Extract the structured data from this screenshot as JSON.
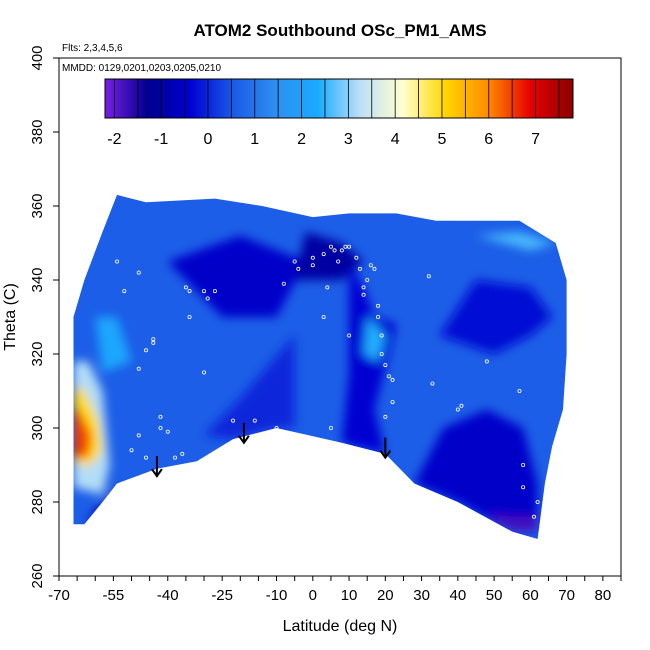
{
  "chart_data": {
    "type": "heatmap",
    "title": "ATOM2 Southbound OSc_PM1_AMS",
    "subtitle_flights": "Flts: 2,3,4,5,6",
    "subtitle_dates": "MMDD: 0129,0201,0203,0205,0210",
    "xlabel": "Latitude (deg N)",
    "ylabel": "Theta (C)",
    "xlim": [
      -70,
      85
    ],
    "ylim": [
      260,
      400
    ],
    "x_ticks": [
      -70,
      -55,
      -40,
      -25,
      -10,
      0,
      10,
      20,
      30,
      40,
      50,
      60,
      70,
      80
    ],
    "x_minor_ticks": [
      -70,
      -65,
      -60,
      -55,
      -50,
      -45,
      -40,
      -35,
      -30,
      -25,
      -20,
      -15,
      -10,
      -5,
      0,
      5,
      10,
      15,
      20,
      25,
      30,
      35,
      40,
      45,
      50,
      55,
      60,
      65,
      70,
      75,
      80,
      85
    ],
    "y_ticks": [
      260,
      280,
      300,
      320,
      340,
      360,
      380,
      400
    ],
    "colorbar": {
      "range": [
        -2.2,
        7.8
      ],
      "tick_values": [
        -2,
        -1,
        0,
        1,
        2,
        3,
        4,
        5,
        6,
        7
      ],
      "colors": [
        "#7a1ee6",
        "#00008c",
        "#0000d2",
        "#1a5ae6",
        "#2e8ef0",
        "#1aaaff",
        "#bde0f7",
        "#ffffd0",
        "#ffd700",
        "#ff8c00",
        "#e60000",
        "#8b0000"
      ]
    },
    "arrows": [
      {
        "lat": -43,
        "theta": 287
      },
      {
        "lat": -19,
        "theta": 296
      },
      {
        "lat": 20,
        "theta": 292
      }
    ],
    "field_outline": [
      [
        -66,
        274
      ],
      [
        -66,
        290
      ],
      [
        -66,
        330
      ],
      [
        -63,
        340
      ],
      [
        -58,
        353
      ],
      [
        -54,
        363
      ],
      [
        -46,
        361
      ],
      [
        -27,
        362
      ],
      [
        -14,
        360
      ],
      [
        0,
        357
      ],
      [
        10,
        358
      ],
      [
        23,
        358
      ],
      [
        34,
        356
      ],
      [
        48,
        356
      ],
      [
        57,
        356
      ],
      [
        67,
        350
      ],
      [
        70,
        340
      ],
      [
        70,
        320
      ],
      [
        69,
        305
      ],
      [
        66,
        295
      ],
      [
        64,
        285
      ],
      [
        62,
        270
      ],
      [
        55,
        272
      ],
      [
        40,
        280
      ],
      [
        28,
        285
      ],
      [
        20,
        293
      ],
      [
        8,
        296
      ],
      [
        -10,
        300
      ],
      [
        -22,
        297
      ],
      [
        -32,
        291
      ],
      [
        -43,
        289
      ],
      [
        -54,
        285
      ],
      [
        -58,
        280
      ],
      [
        -63,
        274
      ]
    ],
    "color_patches": [
      {
        "value": 0.0,
        "points": [
          [
            -30,
            298
          ],
          [
            -20,
            308
          ],
          [
            -5,
            325
          ],
          [
            -5,
            300
          ],
          [
            -10,
            300
          ],
          [
            -22,
            297
          ]
        ]
      },
      {
        "value": -0.5,
        "points": [
          [
            -40,
            345
          ],
          [
            -20,
            352
          ],
          [
            -2,
            345
          ],
          [
            -10,
            330
          ],
          [
            -25,
            330
          ]
        ]
      },
      {
        "value": -0.4,
        "points": [
          [
            10,
            345
          ],
          [
            14,
            338
          ],
          [
            17,
            330
          ],
          [
            23,
            328
          ],
          [
            17,
            305
          ],
          [
            20,
            293
          ],
          [
            8,
            296
          ],
          [
            10,
            315
          ]
        ]
      },
      {
        "value": -0.5,
        "points": [
          [
            40,
            280
          ],
          [
            55,
            272
          ],
          [
            62,
            272
          ],
          [
            62,
            285
          ],
          [
            58,
            300
          ],
          [
            48,
            305
          ],
          [
            36,
            300
          ],
          [
            28,
            285
          ]
        ]
      },
      {
        "value": -0.3,
        "points": [
          [
            35,
            325
          ],
          [
            50,
            320
          ],
          [
            60,
            325
          ],
          [
            66,
            330
          ],
          [
            60,
            338
          ],
          [
            45,
            340
          ]
        ]
      },
      {
        "value": -1.0,
        "points": [
          [
            -2,
            353
          ],
          [
            8,
            350
          ],
          [
            14,
            345
          ],
          [
            8,
            340
          ],
          [
            -5,
            340
          ]
        ]
      },
      {
        "value": -0.6,
        "points": [
          [
            -63,
            274
          ],
          [
            -58,
            280
          ],
          [
            -54,
            285
          ],
          [
            -55,
            280
          ],
          [
            -58,
            276
          ]
        ]
      },
      {
        "value": -1.8,
        "points": [
          [
            48,
            277
          ],
          [
            55,
            272
          ],
          [
            62,
            272
          ],
          [
            62,
            276
          ],
          [
            55,
            276
          ]
        ]
      },
      {
        "value": 2.2,
        "points": [
          [
            -60,
            330
          ],
          [
            -54,
            330
          ],
          [
            -50,
            318
          ],
          [
            -58,
            315
          ]
        ]
      },
      {
        "value": 2.4,
        "points": [
          [
            15,
            330
          ],
          [
            20,
            325
          ],
          [
            18,
            318
          ],
          [
            14,
            320
          ]
        ]
      },
      {
        "value": 2.6,
        "points": [
          [
            45,
            352
          ],
          [
            57,
            353
          ],
          [
            67,
            350
          ],
          [
            60,
            348
          ]
        ]
      },
      {
        "value": 3.2,
        "points": [
          [
            -66,
            318
          ],
          [
            -62,
            318
          ],
          [
            -58,
            310
          ],
          [
            -57,
            300
          ],
          [
            -56,
            290
          ],
          [
            -58,
            282
          ],
          [
            -66,
            284
          ]
        ]
      },
      {
        "value": 5.0,
        "points": [
          [
            -66,
            312
          ],
          [
            -63,
            310
          ],
          [
            -59,
            302
          ],
          [
            -58,
            294
          ],
          [
            -61,
            290
          ],
          [
            -66,
            290
          ]
        ]
      },
      {
        "value": 6.5,
        "points": [
          [
            -66,
            306
          ],
          [
            -64,
            304
          ],
          [
            -61,
            298
          ],
          [
            -62,
            292
          ],
          [
            -66,
            292
          ]
        ]
      }
    ],
    "sample_points": [
      [
        -54,
        345
      ],
      [
        -52,
        337
      ],
      [
        -48,
        342
      ],
      [
        -44,
        323
      ],
      [
        -44,
        324
      ],
      [
        -46,
        321
      ],
      [
        -48,
        316
      ],
      [
        -48,
        298
      ],
      [
        -50,
        294
      ],
      [
        -46,
        292
      ],
      [
        -42,
        303
      ],
      [
        -42,
        300
      ],
      [
        -40,
        299
      ],
      [
        -38,
        292
      ],
      [
        -36,
        293
      ],
      [
        -35,
        338
      ],
      [
        -34,
        337
      ],
      [
        -30,
        337
      ],
      [
        -29,
        335
      ],
      [
        -34,
        330
      ],
      [
        -30,
        315
      ],
      [
        -27,
        337
      ],
      [
        -22,
        302
      ],
      [
        -16,
        302
      ],
      [
        -10,
        300
      ],
      [
        -5,
        345
      ],
      [
        -4,
        343
      ],
      [
        0,
        346
      ],
      [
        0,
        344
      ],
      [
        3,
        347
      ],
      [
        5,
        349
      ],
      [
        6,
        348
      ],
      [
        7,
        345
      ],
      [
        8,
        348
      ],
      [
        9,
        349
      ],
      [
        10,
        349
      ],
      [
        12,
        346
      ],
      [
        13,
        343
      ],
      [
        14,
        338
      ],
      [
        14,
        336
      ],
      [
        15,
        340
      ],
      [
        16,
        344
      ],
      [
        17,
        343
      ],
      [
        18,
        333
      ],
      [
        18,
        330
      ],
      [
        19,
        325
      ],
      [
        19,
        320
      ],
      [
        20,
        317
      ],
      [
        21,
        314
      ],
      [
        22,
        313
      ],
      [
        22,
        307
      ],
      [
        20,
        303
      ],
      [
        5,
        300
      ],
      [
        10,
        325
      ],
      [
        4,
        338
      ],
      [
        -8,
        339
      ],
      [
        32,
        341
      ],
      [
        33,
        312
      ],
      [
        40,
        305
      ],
      [
        41,
        306
      ],
      [
        48,
        318
      ],
      [
        57,
        310
      ],
      [
        58,
        290
      ],
      [
        58,
        284
      ],
      [
        62,
        280
      ],
      [
        61,
        276
      ],
      [
        3,
        330
      ]
    ]
  }
}
